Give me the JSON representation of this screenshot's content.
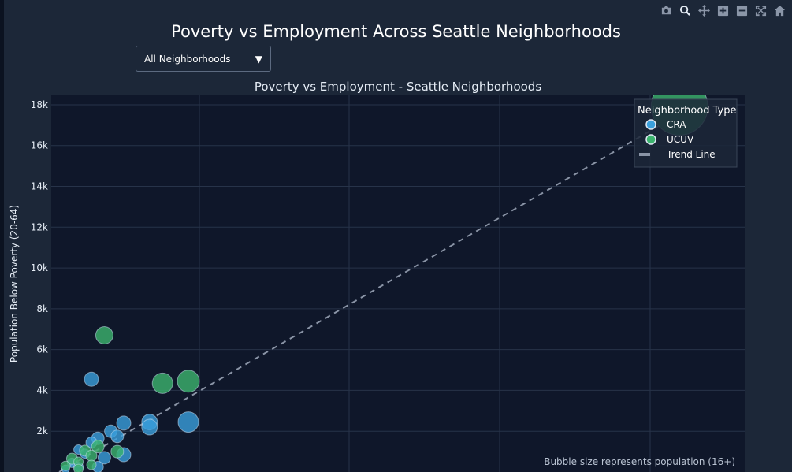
{
  "page": {
    "title": "Poverty vs Employment Across Seattle Neighborhoods",
    "filter": {
      "selected": "All Neighborhoods"
    }
  },
  "modebar": [
    {
      "name": "camera-icon",
      "title": "Download plot as a png"
    },
    {
      "name": "zoom-icon",
      "title": "Zoom"
    },
    {
      "name": "pan-icon",
      "title": "Pan"
    },
    {
      "name": "zoom-in-icon",
      "title": "Zoom in"
    },
    {
      "name": "zoom-out-icon",
      "title": "Zoom out"
    },
    {
      "name": "autoscale-icon",
      "title": "Autoscale"
    },
    {
      "name": "reset-axes-icon",
      "title": "Reset axes"
    }
  ],
  "colors": {
    "CRA": "#3a9fdc",
    "UCUV": "#3cb46e",
    "trend": "#8a94a6",
    "plot_bg": "#0f172a",
    "paper_bg": "#1c2738",
    "grid": "#273349"
  },
  "chart_data": {
    "type": "scatter",
    "title": "Poverty vs Employment - Seattle Neighborhoods",
    "ylabel": "Population Below Poverty (20-64)",
    "xlabel": "",
    "ylim": [
      0,
      18500
    ],
    "y_ticks": [
      2000,
      4000,
      6000,
      8000,
      10000,
      12000,
      14000,
      16000,
      18000
    ],
    "y_tick_labels": [
      "2k",
      "4k",
      "6k",
      "8k",
      "10k",
      "12k",
      "14k",
      "16k",
      "18k"
    ],
    "grid": true,
    "legend": {
      "title": "Neighborhood Type",
      "position": "top-right",
      "entries": [
        "CRA",
        "UCUV",
        "Trend Line"
      ]
    },
    "annotation": "Bubble size represents population (16+)",
    "trend_line": {
      "y_start": 0,
      "y_end": 17000
    },
    "series": [
      {
        "name": "CRA",
        "points": [
          {
            "x": 0.05,
            "y": 4550,
            "size": 9
          },
          {
            "x": 0.2,
            "y": 2450,
            "size": 13
          },
          {
            "x": 0.14,
            "y": 2450,
            "size": 10
          },
          {
            "x": 0.14,
            "y": 2200,
            "size": 10
          },
          {
            "x": 0.1,
            "y": 2400,
            "size": 9
          },
          {
            "x": 0.08,
            "y": 2000,
            "size": 8
          },
          {
            "x": 0.06,
            "y": 1650,
            "size": 8
          },
          {
            "x": 0.05,
            "y": 1450,
            "size": 7
          },
          {
            "x": 0.09,
            "y": 1750,
            "size": 8
          },
          {
            "x": 0.03,
            "y": 1100,
            "size": 6
          },
          {
            "x": 0.04,
            "y": 900,
            "size": 6
          },
          {
            "x": 0.1,
            "y": 850,
            "size": 9
          },
          {
            "x": 0.07,
            "y": 700,
            "size": 8
          },
          {
            "x": 0.02,
            "y": 450,
            "size": 6
          },
          {
            "x": 0.03,
            "y": 250,
            "size": 6
          },
          {
            "x": 0.01,
            "y": 150,
            "size": 5
          },
          {
            "x": 0.06,
            "y": 250,
            "size": 7
          }
        ]
      },
      {
        "name": "UCUV",
        "points": [
          {
            "x": 0.96,
            "y": 17900,
            "size": 36
          },
          {
            "x": 0.07,
            "y": 6700,
            "size": 11
          },
          {
            "x": 0.16,
            "y": 4350,
            "size": 13
          },
          {
            "x": 0.2,
            "y": 4450,
            "size": 14
          },
          {
            "x": 0.06,
            "y": 1250,
            "size": 8
          },
          {
            "x": 0.09,
            "y": 1000,
            "size": 8
          },
          {
            "x": 0.04,
            "y": 1050,
            "size": 7
          },
          {
            "x": 0.02,
            "y": 650,
            "size": 7
          },
          {
            "x": 0.05,
            "y": 800,
            "size": 7
          },
          {
            "x": 0.03,
            "y": 500,
            "size": 6
          },
          {
            "x": 0.01,
            "y": 300,
            "size": 6
          },
          {
            "x": 0.03,
            "y": 150,
            "size": 6
          },
          {
            "x": 0.05,
            "y": 350,
            "size": 6
          }
        ]
      }
    ]
  }
}
